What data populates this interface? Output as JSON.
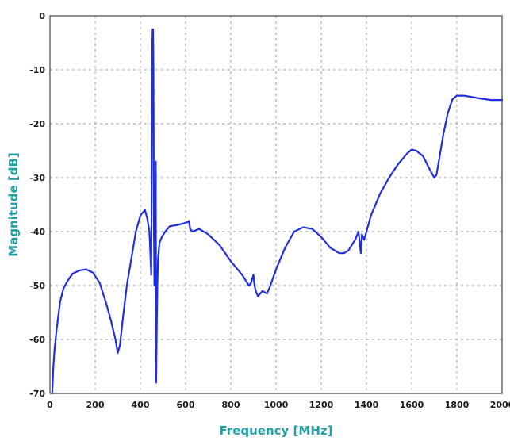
{
  "chart_data": {
    "type": "line",
    "title": "",
    "xlabel": "Frequency [MHz]",
    "ylabel": "Magnitude [dB]",
    "xlim": [
      0,
      2000
    ],
    "ylim": [
      -70,
      0
    ],
    "x_ticks": [
      "0",
      "200",
      "400",
      "600",
      "800",
      "1000",
      "1200",
      "1400",
      "1600",
      "1800",
      "2000"
    ],
    "y_ticks": [
      "0",
      "-10",
      "-20",
      "-30",
      "-40",
      "-50",
      "-60",
      "-70"
    ],
    "grid": true,
    "colors": {
      "line": "#1f2fe0",
      "axis_label": "#20a0a8"
    },
    "series": [
      {
        "x": [
          10,
          15,
          20,
          30,
          45,
          60,
          80,
          100,
          130,
          160,
          190,
          220,
          250,
          270,
          290,
          300,
          310,
          320,
          340,
          360,
          380,
          400,
          420,
          430,
          440,
          445,
          448,
          450,
          452,
          454,
          456,
          458,
          460,
          462,
          465,
          468,
          470,
          472,
          475,
          478,
          485,
          495,
          510,
          530,
          560,
          590,
          610,
          615,
          620,
          630,
          660,
          700,
          750,
          800,
          850,
          880,
          890,
          900,
          905,
          910,
          920,
          930,
          940,
          960,
          975,
          1000,
          1040,
          1080,
          1120,
          1160,
          1200,
          1240,
          1280,
          1300,
          1320,
          1350,
          1365,
          1370,
          1375,
          1380,
          1390,
          1400,
          1420,
          1460,
          1500,
          1540,
          1580,
          1600,
          1620,
          1650,
          1680,
          1700,
          1710,
          1720,
          1740,
          1760,
          1780,
          1800,
          1830,
          1860,
          1900,
          1950,
          2000
        ],
        "y": [
          -70,
          -65,
          -62,
          -58,
          -53,
          -50.5,
          -49,
          -47.8,
          -47.2,
          -47,
          -47.6,
          -49.5,
          -53.5,
          -56.5,
          -60,
          -62.5,
          -61,
          -57,
          -50,
          -45,
          -40,
          -37,
          -36,
          -37.5,
          -40,
          -45,
          -48,
          -30,
          -8,
          -2.5,
          -2.5,
          -10,
          -40,
          -50,
          -45,
          -27,
          -68,
          -60,
          -50,
          -45,
          -42,
          -41,
          -40,
          -39,
          -38.8,
          -38.5,
          -38.2,
          -38,
          -39.5,
          -40,
          -39.5,
          -40.5,
          -42.5,
          -45.5,
          -48,
          -50,
          -49.5,
          -48,
          -50,
          -51,
          -52,
          -51.5,
          -51,
          -51.5,
          -50,
          -47,
          -43,
          -40,
          -39.2,
          -39.5,
          -41,
          -43,
          -44,
          -44,
          -43.5,
          -41.5,
          -40,
          -42,
          -44,
          -40.5,
          -41.5,
          -40,
          -37,
          -33,
          -30,
          -27.5,
          -25.5,
          -24.8,
          -25,
          -26,
          -28.5,
          -30,
          -29.5,
          -27,
          -22,
          -18,
          -15.5,
          -14.8,
          -14.8,
          -15,
          -15.3,
          -15.6,
          -15.6
        ]
      }
    ]
  }
}
